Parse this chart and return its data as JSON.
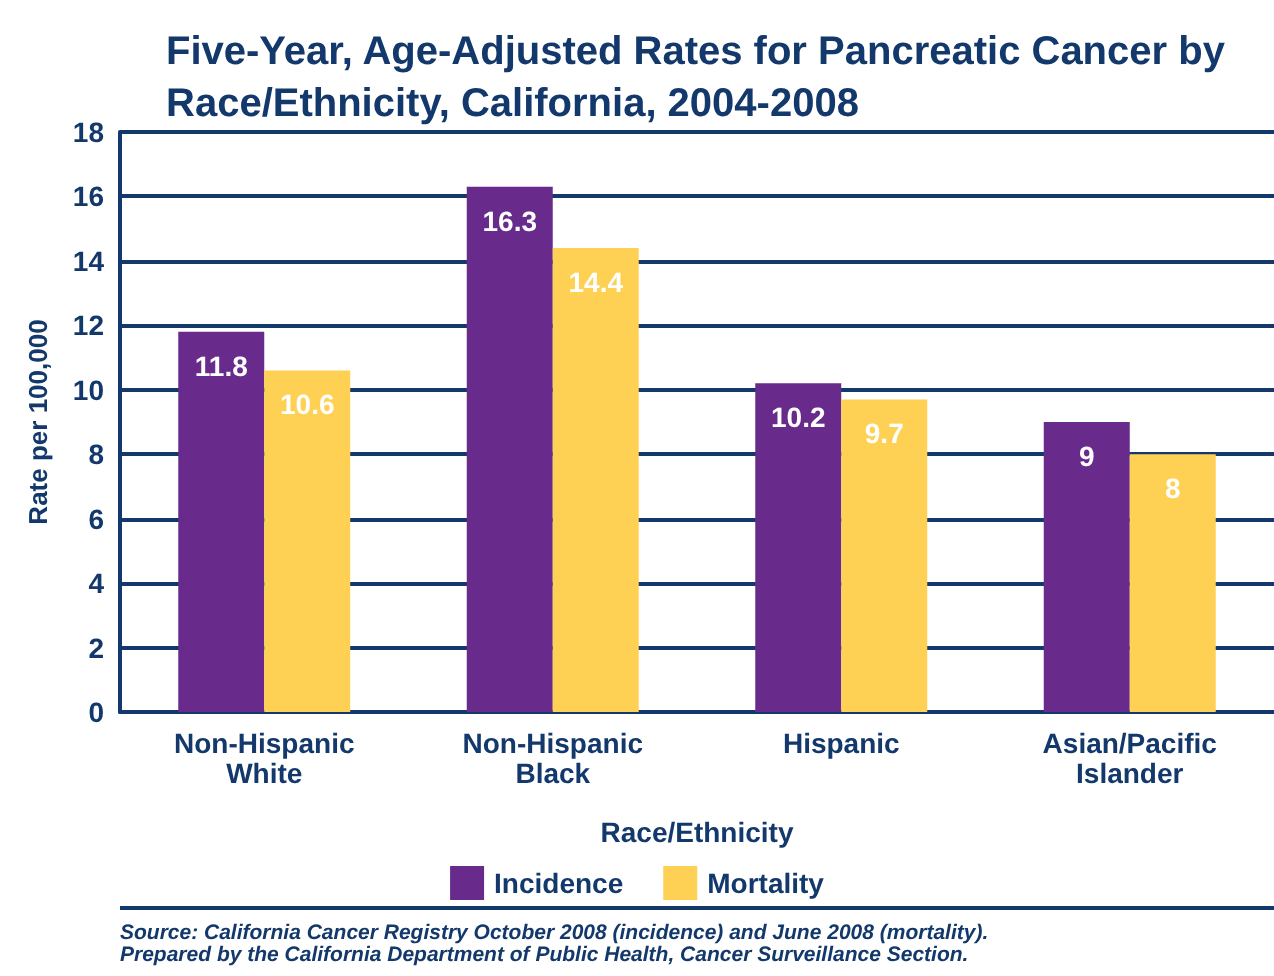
{
  "chart_data": {
    "type": "bar",
    "title": "Five-Year, Age-Adjusted Rates for Pancreatic Cancer by\nRace/Ethnicity, California, 2004-2008",
    "xlabel": "Race/Ethnicity",
    "ylabel": "Rate per 100,000",
    "categories": [
      "Non-Hispanic\nWhite",
      "Non-Hispanic\nBlack",
      "Hispanic",
      "Asian/Pacific\nIslander"
    ],
    "series": [
      {
        "name": "Incidence",
        "color": "#682b8c",
        "values": [
          11.8,
          16.3,
          10.2,
          9
        ]
      },
      {
        "name": "Mortality",
        "color": "#fed155",
        "values": [
          10.6,
          14.4,
          9.7,
          8
        ]
      }
    ],
    "ylim": [
      0,
      18
    ],
    "yticks": [
      0,
      2,
      4,
      6,
      8,
      10,
      12,
      14,
      16,
      18
    ],
    "grid": "y",
    "legend": "bottom",
    "data_labels": true,
    "annotations": [
      "Source: California Cancer Registry October 2008 (incidence) and June 2008 (mortality).",
      "Prepared by the California Department of Public Health, Cancer Surveillance Section."
    ]
  }
}
